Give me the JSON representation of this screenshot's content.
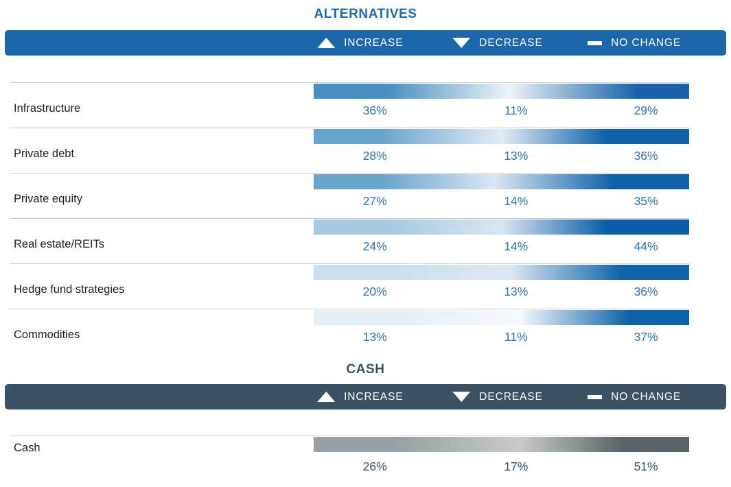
{
  "sections": [
    {
      "title": "ALTERNATIVES",
      "colors": {
        "title": "#1D6BB2",
        "header_bg": "#1B67AC",
        "value": "#2E75B6"
      },
      "legend": [
        {
          "icon": "triangle-up",
          "label": "INCREASE"
        },
        {
          "icon": "triangle-down",
          "label": "DECREASE"
        },
        {
          "icon": "dash",
          "label": "NO CHANGE"
        }
      ],
      "rows": [
        {
          "label": "Infrastructure",
          "values": [
            "36%",
            "11%",
            "29%"
          ],
          "gradient": [
            {
              "color": "#4A8FC1",
              "pos": 0
            },
            {
              "color": "#4A8FC1",
              "pos": 20
            },
            {
              "color": "#EDF3F8",
              "pos": 52
            },
            {
              "color": "#1A63AA",
              "pos": 86
            },
            {
              "color": "#1A63AA",
              "pos": 100
            }
          ]
        },
        {
          "label": "Private debt",
          "values": [
            "28%",
            "13%",
            "36%"
          ],
          "gradient": [
            {
              "color": "#69A4CD",
              "pos": 0
            },
            {
              "color": "#69A4CD",
              "pos": 18
            },
            {
              "color": "#E2ECF5",
              "pos": 50
            },
            {
              "color": "#1061A9",
              "pos": 78
            },
            {
              "color": "#1061A9",
              "pos": 100
            }
          ]
        },
        {
          "label": "Private equity",
          "values": [
            "27%",
            "14%",
            "35%"
          ],
          "gradient": [
            {
              "color": "#68A3CC",
              "pos": 0
            },
            {
              "color": "#68A3CC",
              "pos": 18
            },
            {
              "color": "#D9E7F2",
              "pos": 48
            },
            {
              "color": "#0F61A9",
              "pos": 80
            },
            {
              "color": "#0F61A9",
              "pos": 100
            }
          ]
        },
        {
          "label": "Real estate/REITs",
          "values": [
            "24%",
            "14%",
            "44%"
          ],
          "gradient": [
            {
              "color": "#A4CADE",
              "pos": 0
            },
            {
              "color": "#A4CADE",
              "pos": 20
            },
            {
              "color": "#D8E6F1",
              "pos": 50
            },
            {
              "color": "#0C5DA7",
              "pos": 78
            },
            {
              "color": "#0C5DA7",
              "pos": 100
            }
          ]
        },
        {
          "label": "Hedge fund strategies",
          "values": [
            "20%",
            "13%",
            "36%"
          ],
          "gradient": [
            {
              "color": "#CBDEEB",
              "pos": 0
            },
            {
              "color": "#CBDEEB",
              "pos": 22
            },
            {
              "color": "#DDE9F2",
              "pos": 52
            },
            {
              "color": "#1164AB",
              "pos": 82
            },
            {
              "color": "#1164AB",
              "pos": 100
            }
          ]
        },
        {
          "label": "Commodities",
          "values": [
            "13%",
            "11%",
            "37%"
          ],
          "gradient": [
            {
              "color": "#E7EFF6",
              "pos": 0
            },
            {
              "color": "#E7EFF6",
              "pos": 25
            },
            {
              "color": "#F6F9FC",
              "pos": 55
            },
            {
              "color": "#0F62A9",
              "pos": 84
            },
            {
              "color": "#0F62A9",
              "pos": 100
            }
          ]
        }
      ]
    },
    {
      "title": "CASH",
      "colors": {
        "title": "#34536A",
        "header_bg": "#3A5365",
        "value": "#34536A"
      },
      "legend": [
        {
          "icon": "triangle-up",
          "label": "INCREASE"
        },
        {
          "icon": "triangle-down",
          "label": "DECREASE"
        },
        {
          "icon": "dash",
          "label": "NO CHANGE"
        }
      ],
      "rows": [
        {
          "label": "Cash",
          "values": [
            "26%",
            "17%",
            "51%"
          ],
          "gradient": [
            {
              "color": "#999FA2",
              "pos": 0
            },
            {
              "color": "#999FA2",
              "pos": 22
            },
            {
              "color": "#C7CBCC",
              "pos": 55
            },
            {
              "color": "#5C6366",
              "pos": 82
            },
            {
              "color": "#5C6366",
              "pos": 100
            }
          ]
        }
      ]
    }
  ],
  "chart_data": [
    {
      "type": "heatmap",
      "title": "ALTERNATIVES",
      "categories": [
        "Infrastructure",
        "Private debt",
        "Private equity",
        "Real estate/REITs",
        "Hedge fund strategies",
        "Commodities"
      ],
      "series": [
        {
          "name": "Increase",
          "values": [
            36,
            28,
            27,
            24,
            20,
            13
          ]
        },
        {
          "name": "Decrease",
          "values": [
            11,
            13,
            14,
            14,
            13,
            11
          ]
        },
        {
          "name": "No change",
          "values": [
            29,
            36,
            35,
            44,
            36,
            37
          ]
        }
      ],
      "unit": "%",
      "legend_position": "top",
      "legend_entries": [
        "INCREASE",
        "DECREASE",
        "NO CHANGE"
      ]
    },
    {
      "type": "heatmap",
      "title": "CASH",
      "categories": [
        "Cash"
      ],
      "series": [
        {
          "name": "Increase",
          "values": [
            26
          ]
        },
        {
          "name": "Decrease",
          "values": [
            17
          ]
        },
        {
          "name": "No change",
          "values": [
            51
          ]
        }
      ],
      "unit": "%",
      "legend_position": "top",
      "legend_entries": [
        "INCREASE",
        "DECREASE",
        "NO CHANGE"
      ]
    }
  ]
}
